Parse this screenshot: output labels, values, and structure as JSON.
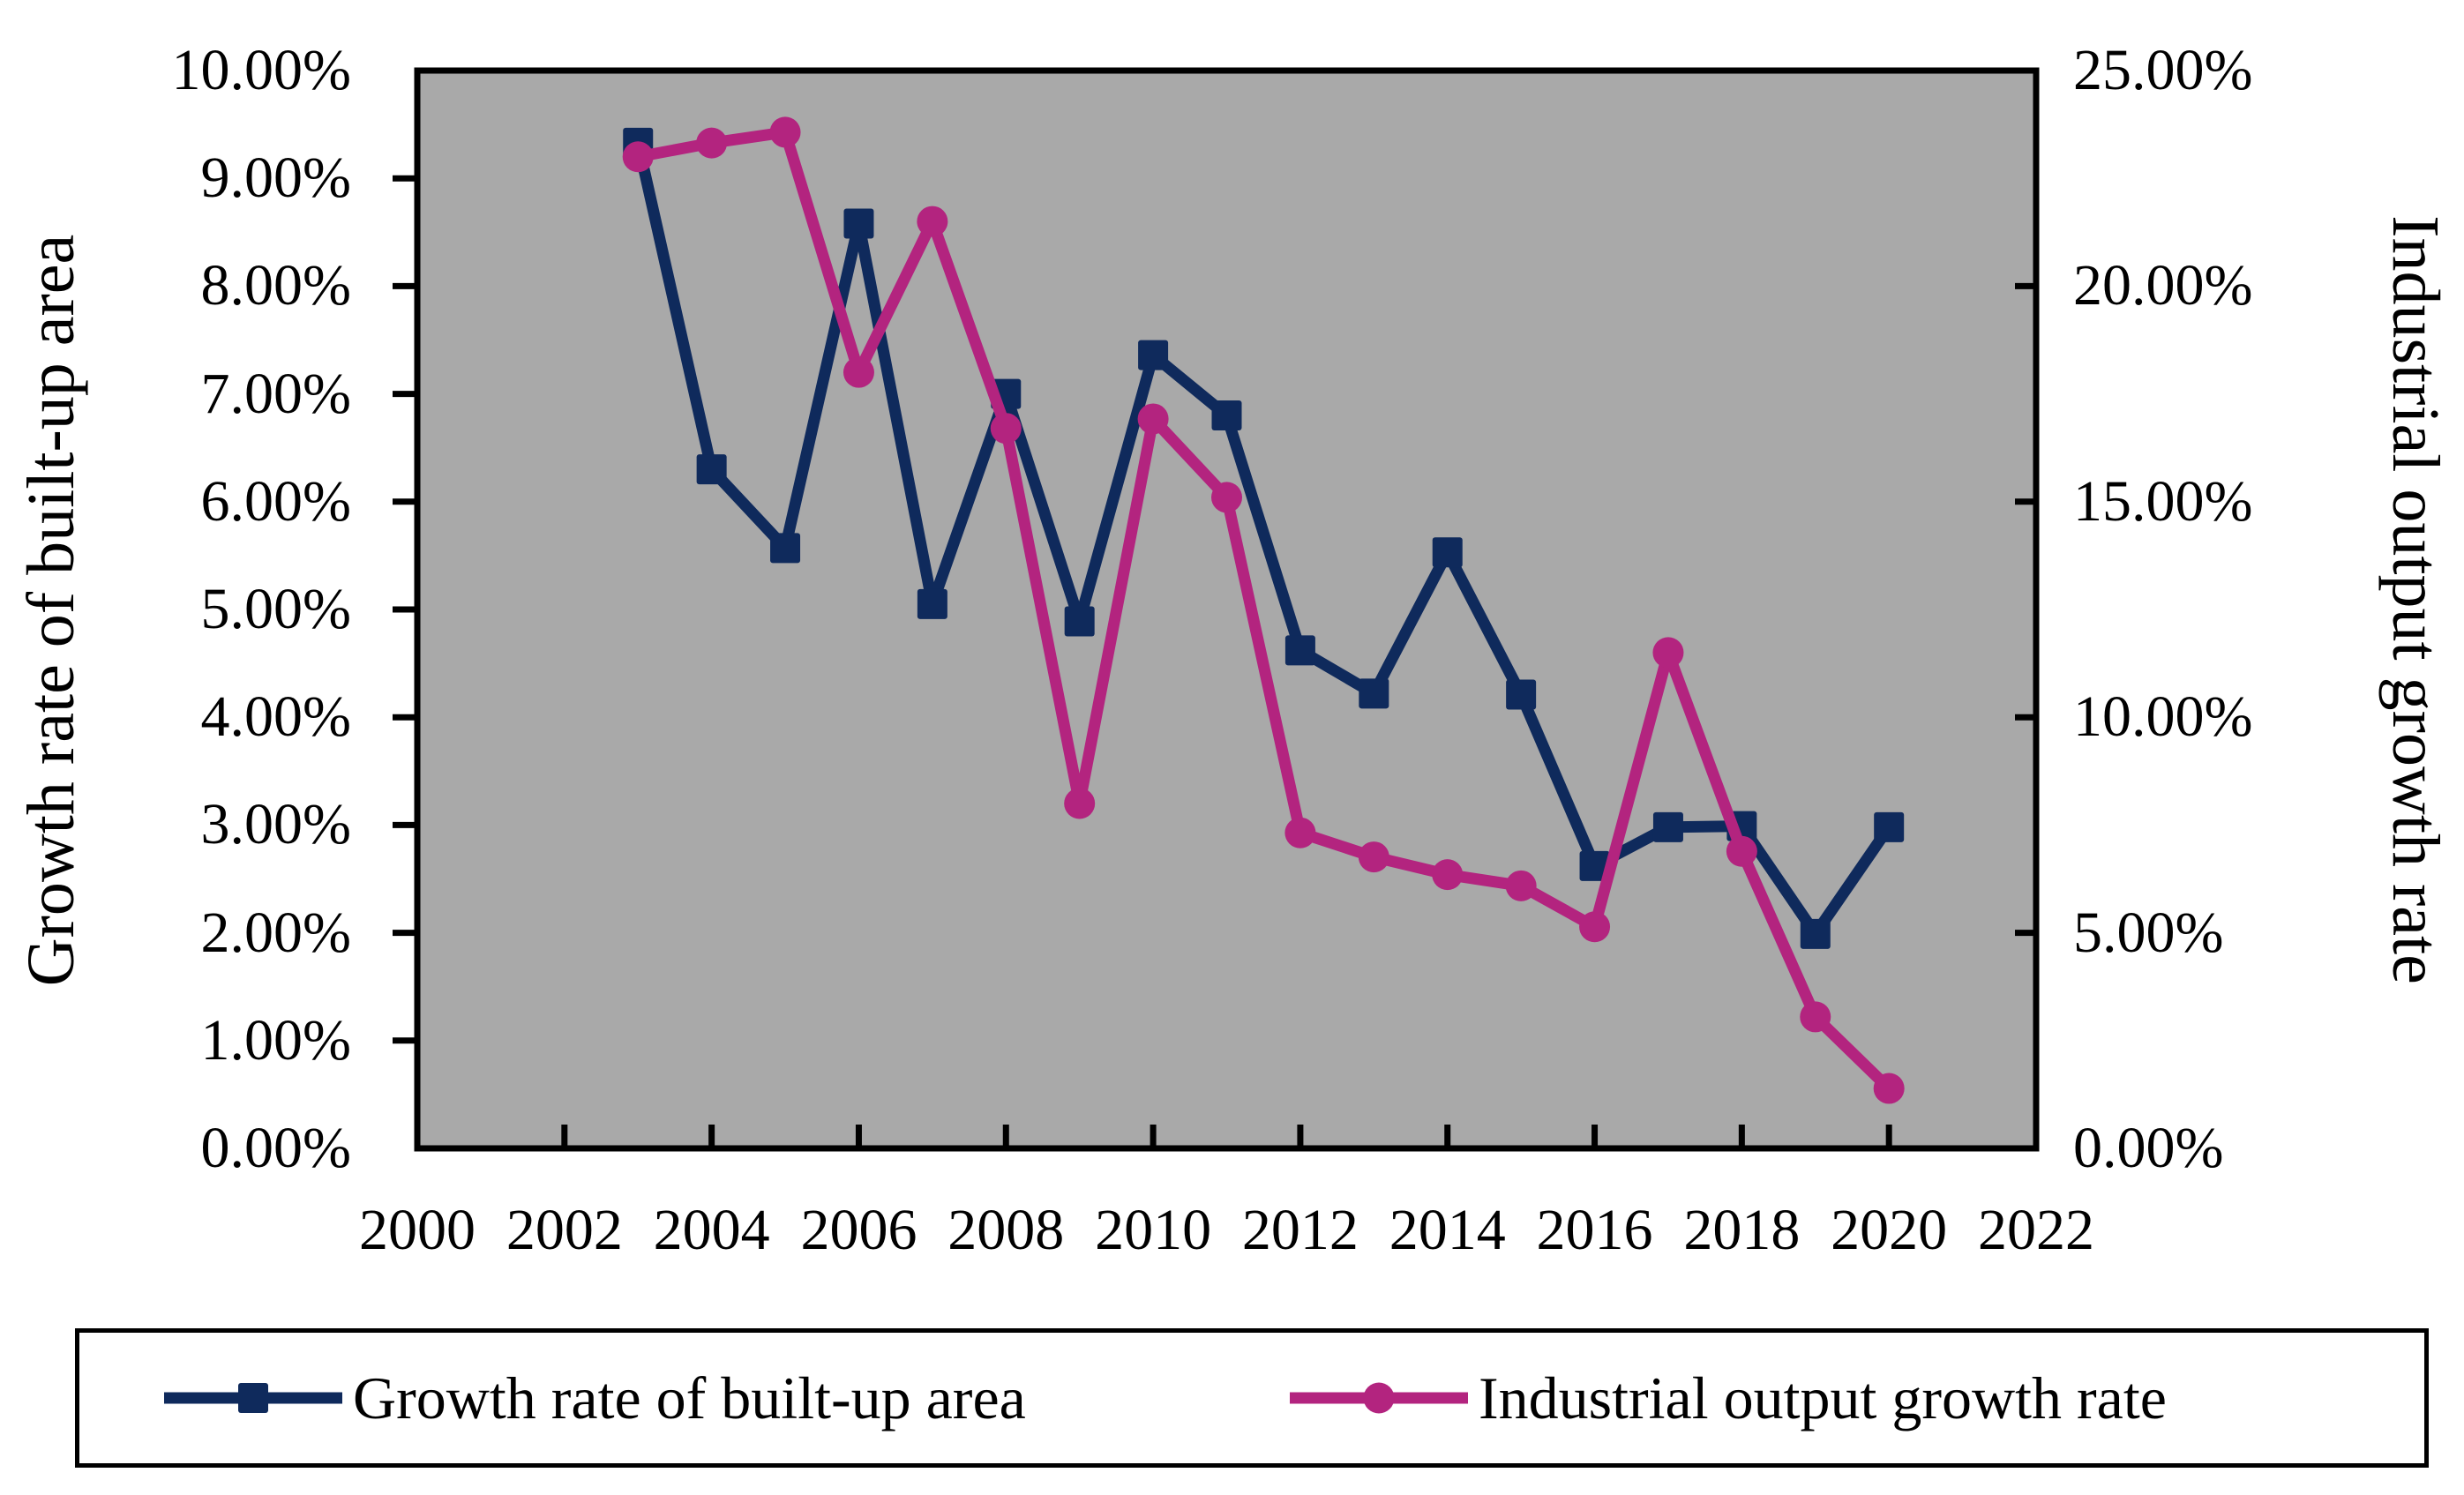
{
  "chart_data": {
    "type": "line",
    "title": "",
    "x": [
      2003,
      2004,
      2005,
      2006,
      2007,
      2008,
      2009,
      2010,
      2011,
      2012,
      2013,
      2014,
      2015,
      2016,
      2017,
      2018,
      2019,
      2020
    ],
    "series": [
      {
        "name": "Growth rate of built-up area",
        "axis": "left",
        "marker": "square",
        "color": "#0f2a5c",
        "values": [
          9.33,
          6.3,
          5.57,
          8.58,
          5.05,
          7.0,
          4.89,
          7.36,
          6.8,
          4.62,
          4.22,
          5.53,
          4.21,
          2.62,
          2.98,
          2.99,
          1.99,
          2.98
        ]
      },
      {
        "name": "Industrial output growth rate",
        "axis": "right",
        "marker": "circle",
        "color": "#b3247f",
        "values": [
          23.0,
          23.32,
          23.57,
          18.0,
          21.5,
          16.7,
          8.0,
          16.92,
          15.1,
          7.32,
          6.76,
          6.35,
          6.09,
          5.14,
          11.5,
          6.89,
          3.05,
          1.39
        ]
      }
    ],
    "left_axis": {
      "title": "Growth rate of built-up area",
      "min": 0,
      "max": 10,
      "step": 1,
      "tick_labels": [
        "10.00%",
        "9.00%",
        "8.00%",
        "7.00%",
        "6.00%",
        "5.00%",
        "4.00%",
        "3.00%",
        "2.00%",
        "1.00%",
        "0.00%"
      ]
    },
    "right_axis": {
      "title": "Industrial output growth rate",
      "min": 0,
      "max": 25,
      "step": 5,
      "tick_labels": [
        "25.00%",
        "20.00%",
        "15.00%",
        "10.00%",
        "5.00%",
        "0.00%"
      ]
    },
    "x_axis": {
      "min": 2000,
      "max": 2022,
      "step": 2,
      "tick_labels": [
        "2000",
        "2002",
        "2004",
        "2006",
        "2008",
        "2010",
        "2012",
        "2014",
        "2016",
        "2018",
        "2020",
        "2022"
      ]
    },
    "legend": {
      "position": "bottom",
      "entries": [
        "Growth rate of built-up area",
        "Industrial output growth rate"
      ]
    },
    "grid": false,
    "plot_background": "#a9a9a9",
    "axis_color": "#000000",
    "legend_border_color": "#000000"
  }
}
